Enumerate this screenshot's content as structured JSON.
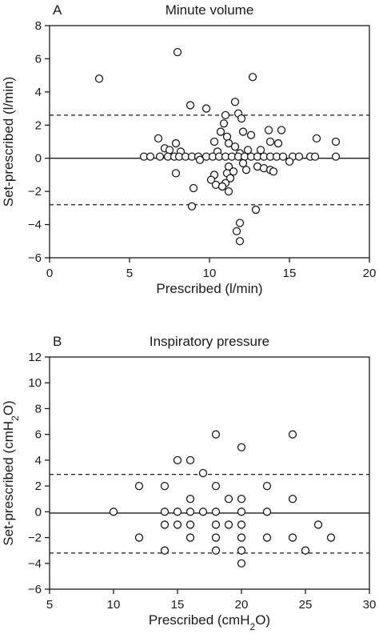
{
  "chart_data": [
    {
      "type": "scatter",
      "panel_letter": "A",
      "title": "Minute volume",
      "xlabel": "Prescribed (l/min)",
      "ylabel": "Set-prescribed (l/min)",
      "xlim": [
        0,
        20
      ],
      "ylim": [
        -6,
        8
      ],
      "xticks": [
        0,
        5,
        10,
        15,
        20
      ],
      "yticks": [
        -6,
        -4,
        -2,
        0,
        2,
        4,
        6,
        8
      ],
      "reference_lines": {
        "mean": 0,
        "upper": 2.6,
        "lower": -2.8
      },
      "points": [
        [
          3.1,
          4.8
        ],
        [
          8.0,
          6.4
        ],
        [
          12.7,
          4.9
        ],
        [
          11.6,
          3.4
        ],
        [
          8.8,
          3.2
        ],
        [
          9.8,
          3.0
        ],
        [
          11.8,
          2.7
        ],
        [
          12.0,
          2.4
        ],
        [
          11.0,
          2.6
        ],
        [
          10.9,
          2.1
        ],
        [
          10.7,
          1.6
        ],
        [
          12.1,
          1.6
        ],
        [
          13.7,
          1.7
        ],
        [
          14.5,
          1.7
        ],
        [
          11.1,
          1.3
        ],
        [
          12.6,
          1.4
        ],
        [
          6.8,
          1.2
        ],
        [
          16.7,
          1.2
        ],
        [
          17.9,
          1.0
        ],
        [
          7.9,
          0.9
        ],
        [
          10.3,
          1.0
        ],
        [
          11.2,
          0.9
        ],
        [
          13.8,
          1.0
        ],
        [
          14.3,
          0.9
        ],
        [
          7.2,
          0.6
        ],
        [
          7.5,
          0.5
        ],
        [
          11.6,
          0.7
        ],
        [
          12.4,
          0.5
        ],
        [
          13.2,
          0.5
        ],
        [
          8.2,
          0.4
        ],
        [
          10.5,
          0.4
        ],
        [
          11.9,
          0.3
        ],
        [
          5.9,
          0.1
        ],
        [
          6.3,
          0.1
        ],
        [
          6.9,
          0.1
        ],
        [
          7.4,
          0.1
        ],
        [
          7.8,
          0.1
        ],
        [
          8.1,
          0.1
        ],
        [
          8.5,
          0.1
        ],
        [
          8.9,
          0.1
        ],
        [
          9.3,
          0.1
        ],
        [
          9.8,
          0.1
        ],
        [
          10.2,
          0.1
        ],
        [
          10.6,
          0.1
        ],
        [
          11.0,
          0.1
        ],
        [
          11.4,
          0.1
        ],
        [
          11.8,
          0.1
        ],
        [
          12.2,
          0.1
        ],
        [
          12.6,
          0.1
        ],
        [
          13.0,
          0.1
        ],
        [
          13.4,
          0.1
        ],
        [
          13.8,
          0.1
        ],
        [
          14.2,
          0.1
        ],
        [
          14.6,
          0.1
        ],
        [
          15.2,
          0.1
        ],
        [
          15.6,
          0.1
        ],
        [
          16.3,
          0.1
        ],
        [
          16.6,
          0.1
        ],
        [
          17.9,
          0.1
        ],
        [
          9.4,
          -0.1
        ],
        [
          12.1,
          -0.3
        ],
        [
          15.0,
          -0.2
        ],
        [
          13.0,
          -0.5
        ],
        [
          13.4,
          -0.6
        ],
        [
          11.2,
          -0.5
        ],
        [
          12.3,
          -0.7
        ],
        [
          13.8,
          -0.7
        ],
        [
          14.0,
          -0.8
        ],
        [
          7.9,
          -0.9
        ],
        [
          11.1,
          -0.9
        ],
        [
          11.5,
          -0.8
        ],
        [
          10.3,
          -1.0
        ],
        [
          11.3,
          -1.2
        ],
        [
          10.1,
          -1.3
        ],
        [
          11.0,
          -1.5
        ],
        [
          10.4,
          -1.6
        ],
        [
          10.8,
          -1.7
        ],
        [
          9.0,
          -1.8
        ],
        [
          11.2,
          -2.0
        ],
        [
          8.9,
          -2.9
        ],
        [
          12.9,
          -3.1
        ],
        [
          11.9,
          -3.9
        ],
        [
          11.7,
          -4.4
        ],
        [
          11.9,
          -5.0
        ]
      ]
    },
    {
      "type": "scatter",
      "panel_letter": "B",
      "title": "Inspiratory pressure",
      "xlabel": "Prescribed (cmH2O)",
      "xlabel_parts": {
        "pre": "Prescribed (cmH",
        "sub": "2",
        "post": "O)"
      },
      "ylabel": "Set-prescribed (cmH2O)",
      "ylabel_parts": {
        "pre": "Set-prescribed (cmH",
        "sub": "2",
        "post": "O)"
      },
      "xlim": [
        5,
        30
      ],
      "ylim": [
        -6,
        12
      ],
      "xticks": [
        5,
        10,
        15,
        20,
        25,
        30
      ],
      "yticks": [
        -6,
        -4,
        -2,
        0,
        2,
        4,
        6,
        8,
        10,
        12
      ],
      "reference_lines": {
        "mean": -0.1,
        "upper": 2.9,
        "lower": -3.2
      },
      "points": [
        [
          10,
          0
        ],
        [
          12,
          2
        ],
        [
          12,
          -2
        ],
        [
          14,
          2
        ],
        [
          14,
          0
        ],
        [
          14,
          -1
        ],
        [
          14,
          -3
        ],
        [
          15,
          4
        ],
        [
          15,
          0
        ],
        [
          15,
          -1
        ],
        [
          16,
          4
        ],
        [
          16,
          1
        ],
        [
          16,
          0
        ],
        [
          16,
          -1
        ],
        [
          16,
          -2
        ],
        [
          17,
          3
        ],
        [
          17,
          0
        ],
        [
          18,
          6
        ],
        [
          18,
          2
        ],
        [
          18,
          0
        ],
        [
          18,
          -1
        ],
        [
          18,
          -2
        ],
        [
          18,
          -3
        ],
        [
          19,
          1
        ],
        [
          19,
          -1
        ],
        [
          20,
          5
        ],
        [
          20,
          1
        ],
        [
          20,
          0
        ],
        [
          20,
          -1
        ],
        [
          20,
          -2
        ],
        [
          20,
          -3
        ],
        [
          20,
          -4
        ],
        [
          22,
          2
        ],
        [
          22,
          0
        ],
        [
          22,
          -2
        ],
        [
          24,
          6
        ],
        [
          24,
          1
        ],
        [
          24,
          -2
        ],
        [
          25,
          -3
        ],
        [
          26,
          -1
        ],
        [
          27,
          -2
        ]
      ]
    }
  ]
}
